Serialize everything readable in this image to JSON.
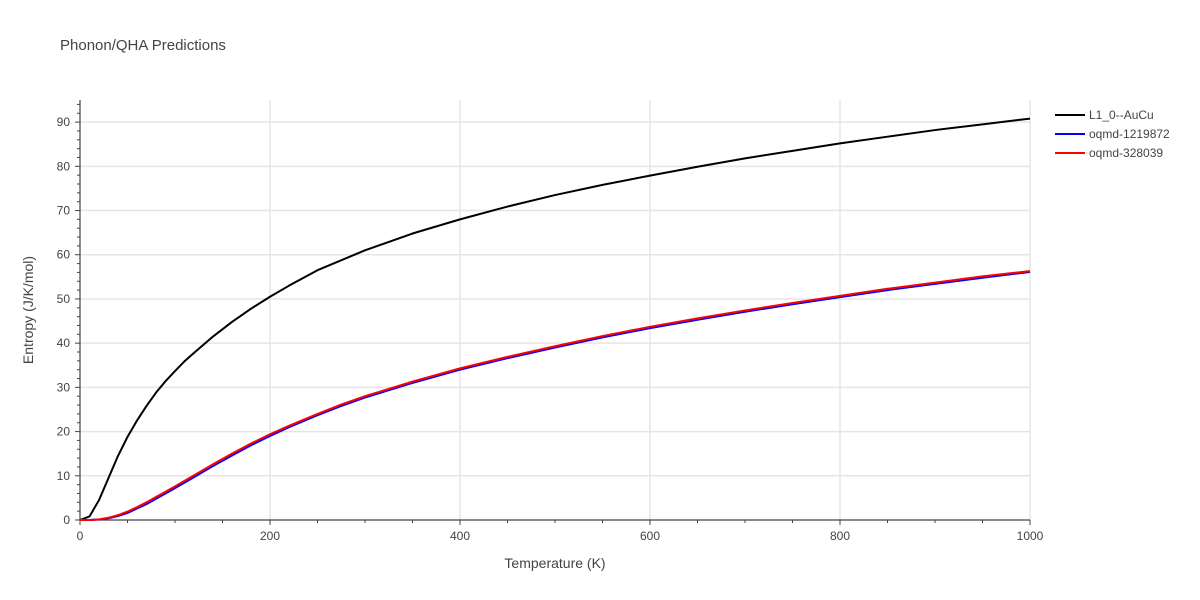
{
  "chart_data": {
    "type": "line",
    "title": "Phonon/QHA Predictions",
    "xlabel": "Temperature (K)",
    "ylabel": "Entropy (J/K/mol)",
    "xlim": [
      0,
      1000
    ],
    "ylim": [
      0,
      95
    ],
    "x_ticks": [
      0,
      200,
      400,
      600,
      800,
      1000
    ],
    "y_ticks": [
      0,
      10,
      20,
      30,
      40,
      50,
      60,
      70,
      80,
      90
    ],
    "grid": true,
    "legend_position": "top-right",
    "series": [
      {
        "name": "L1_0--AuCu",
        "color": "#000000",
        "x": [
          0,
          10,
          20,
          30,
          40,
          50,
          60,
          70,
          80,
          90,
          100,
          110,
          120,
          140,
          160,
          180,
          200,
          220,
          250,
          300,
          350,
          400,
          450,
          500,
          550,
          600,
          650,
          700,
          750,
          800,
          850,
          900,
          950,
          1000
        ],
        "y": [
          0,
          0.8,
          4.5,
          9.5,
          14.5,
          18.8,
          22.5,
          25.8,
          28.8,
          31.4,
          33.7,
          35.9,
          37.8,
          41.5,
          44.8,
          47.8,
          50.5,
          53.0,
          56.5,
          61.0,
          64.8,
          68.0,
          70.9,
          73.5,
          75.8,
          77.9,
          79.9,
          81.8,
          83.5,
          85.2,
          86.7,
          88.2,
          89.5,
          90.8
        ]
      },
      {
        "name": "oqmd-1219872",
        "color": "#0000ff",
        "x": [
          0,
          10,
          20,
          30,
          40,
          50,
          60,
          70,
          80,
          90,
          100,
          120,
          140,
          160,
          180,
          200,
          220,
          250,
          275,
          300,
          350,
          400,
          450,
          500,
          550,
          600,
          650,
          700,
          750,
          800,
          850,
          900,
          950,
          1000
        ],
        "y": [
          0,
          0,
          0.1,
          0.4,
          0.9,
          1.6,
          2.6,
          3.6,
          4.8,
          6.0,
          7.2,
          9.7,
          12.2,
          14.6,
          16.9,
          19.0,
          21.0,
          23.7,
          25.8,
          27.7,
          31.0,
          34.0,
          36.6,
          39.0,
          41.3,
          43.4,
          45.3,
          47.1,
          48.8,
          50.4,
          52.0,
          53.4,
          54.8,
          56.1
        ]
      },
      {
        "name": "oqmd-328039",
        "color": "#ff0000",
        "x": [
          0,
          10,
          20,
          30,
          40,
          50,
          60,
          70,
          80,
          90,
          100,
          120,
          140,
          160,
          180,
          200,
          220,
          250,
          275,
          300,
          350,
          400,
          450,
          500,
          550,
          600,
          650,
          700,
          750,
          800,
          850,
          900,
          950,
          1000
        ],
        "y": [
          0,
          0,
          0.15,
          0.5,
          1.1,
          1.9,
          2.9,
          4.0,
          5.2,
          6.4,
          7.6,
          10.1,
          12.6,
          15.0,
          17.3,
          19.4,
          21.3,
          24.0,
          26.1,
          28.0,
          31.3,
          34.3,
          36.9,
          39.3,
          41.6,
          43.7,
          45.6,
          47.4,
          49.1,
          50.7,
          52.3,
          53.7,
          55.1,
          56.3
        ]
      }
    ]
  }
}
